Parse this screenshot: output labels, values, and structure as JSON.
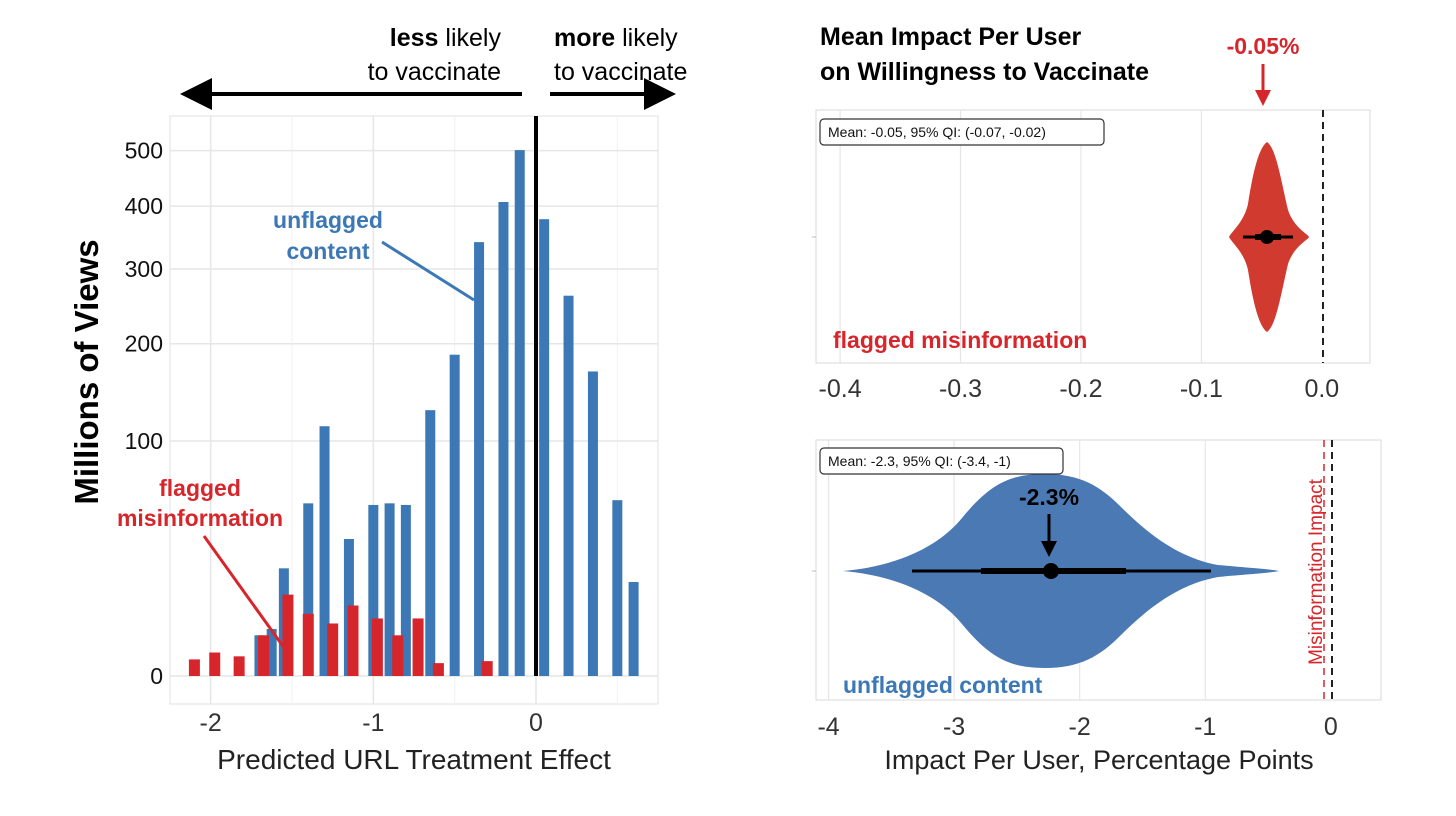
{
  "colors": {
    "unflagged": "#3B78B5",
    "flagged": "#D7262B",
    "grid": "#E6E6E6",
    "axis_text": "#333333",
    "black": "#000000"
  },
  "left_panel": {
    "less_bold": "less",
    "less_rest": "likely",
    "less_line2": "to vaccinate",
    "more_bold": "more",
    "more_rest": "likely",
    "more_line2": "to vaccinate",
    "annotation_unflagged_1": "unflagged",
    "annotation_unflagged_2": "content",
    "annotation_flagged_1": "flagged",
    "annotation_flagged_2": "misinformation"
  },
  "right_top": {
    "title_line1": "Mean Impact Per User",
    "title_line2": "on Willingness to Vaccinate",
    "callout": "-0.05%",
    "stats_label": "Mean: -0.05, 95% QI: (-0.07, -0.02)",
    "series_label": "flagged misinformation"
  },
  "right_bottom": {
    "callout": "-2.3%",
    "stats_label": "Mean: -2.3, 95% QI: (-3.4, -1)",
    "series_label": "unflagged content",
    "reference_label": "Misinformation Impact"
  },
  "chart_data": [
    {
      "type": "bar",
      "xlabel": "Predicted URL Treatment Effect",
      "ylabel": "Millions of Views",
      "xlim": [
        -2.25,
        0.75
      ],
      "xticks": [
        -2,
        -1,
        0
      ],
      "xtick_labels": [
        "-2",
        "-1",
        "0"
      ],
      "yscale": "sqrt",
      "ylim": [
        0,
        560
      ],
      "yticks": [
        0,
        100,
        200,
        300,
        400,
        500
      ],
      "ytick_labels": [
        "0",
        "100",
        "200",
        "300",
        "400",
        "500"
      ],
      "vline": 0,
      "series": [
        {
          "name": "unflagged content",
          "x": [
            -1.7,
            -1.625,
            -1.55,
            -1.4,
            -1.3,
            -1.15,
            -1.0,
            -0.9,
            -0.8,
            -0.65,
            -0.5,
            -0.35,
            -0.2,
            -0.1,
            0.05,
            0.2,
            0.35,
            0.5,
            0.6
          ],
          "values": [
            3,
            4,
            21,
            54,
            113,
            34,
            53,
            54,
            53,
            128,
            187,
            341,
            407,
            501,
            378,
            262,
            168,
            56,
            16
          ]
        },
        {
          "name": "flagged misinformation",
          "x": [
            -2.1,
            -1.975,
            -1.825,
            -1.675,
            -1.525,
            -1.4,
            -1.25,
            -1.125,
            -0.975,
            -0.85,
            -0.725,
            -0.6,
            -0.3
          ],
          "values": [
            0.5,
            1,
            0.7,
            3,
            12,
            7,
            5,
            9,
            6,
            3,
            6,
            0.3,
            0.4
          ]
        }
      ]
    },
    {
      "type": "violin",
      "title": "Mean Impact Per User on Willingness to Vaccinate",
      "series_name": "flagged misinformation",
      "xlim": [
        -0.42,
        0.04
      ],
      "xticks": [
        -0.4,
        -0.3,
        -0.2,
        -0.1,
        0.0
      ],
      "xtick_labels": [
        "-0.4",
        "-0.3",
        "-0.2",
        "-0.1",
        "0.0"
      ],
      "mean": -0.05,
      "qi95": [
        -0.07,
        -0.02
      ],
      "reference_line": 0
    },
    {
      "type": "violin",
      "xlabel": "Impact Per User, Percentage Points",
      "series_name": "unflagged content",
      "xlim": [
        -4.1,
        0.4
      ],
      "xticks": [
        -4,
        -3,
        -2,
        -1,
        0
      ],
      "xtick_labels": [
        "-4",
        "-3",
        "-2",
        "-1",
        "0"
      ],
      "mean": -2.3,
      "qi95": [
        -3.4,
        -1
      ],
      "reference_line": 0
    }
  ]
}
